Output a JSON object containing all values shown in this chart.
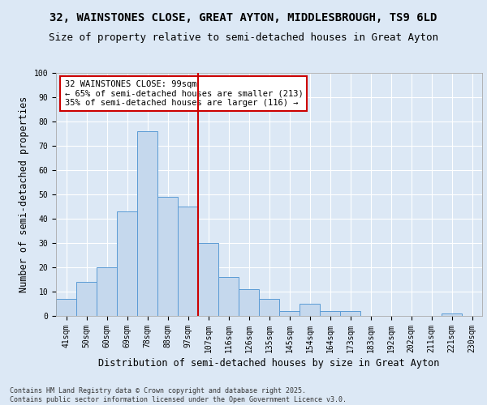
{
  "title_line1": "32, WAINSTONES CLOSE, GREAT AYTON, MIDDLESBROUGH, TS9 6LD",
  "title_line2": "Size of property relative to semi-detached houses in Great Ayton",
  "xlabel": "Distribution of semi-detached houses by size in Great Ayton",
  "ylabel": "Number of semi-detached properties",
  "categories": [
    "41sqm",
    "50sqm",
    "60sqm",
    "69sqm",
    "78sqm",
    "88sqm",
    "97sqm",
    "107sqm",
    "116sqm",
    "126sqm",
    "135sqm",
    "145sqm",
    "154sqm",
    "164sqm",
    "173sqm",
    "183sqm",
    "192sqm",
    "202sqm",
    "211sqm",
    "221sqm",
    "230sqm"
  ],
  "values": [
    7,
    14,
    20,
    43,
    76,
    49,
    45,
    30,
    16,
    11,
    7,
    2,
    5,
    2,
    2,
    0,
    0,
    0,
    0,
    1,
    0
  ],
  "bar_color": "#c5d8ed",
  "bar_edge_color": "#5b9bd5",
  "vline_x_index": 6.5,
  "vline_color": "#cc0000",
  "annotation_title": "32 WAINSTONES CLOSE: 99sqm",
  "annotation_line2": "← 65% of semi-detached houses are smaller (213)",
  "annotation_line3": "35% of semi-detached houses are larger (116) →",
  "annotation_box_edge": "#cc0000",
  "ylim": [
    0,
    100
  ],
  "yticks": [
    0,
    10,
    20,
    30,
    40,
    50,
    60,
    70,
    80,
    90,
    100
  ],
  "background_color": "#dce8f5",
  "plot_bg_color": "#dce8f5",
  "footer": "Contains HM Land Registry data © Crown copyright and database right 2025.\nContains public sector information licensed under the Open Government Licence v3.0.",
  "title_fontsize": 10,
  "subtitle_fontsize": 9,
  "axis_label_fontsize": 8.5,
  "tick_fontsize": 7,
  "annotation_fontsize": 7.5,
  "footer_fontsize": 6
}
